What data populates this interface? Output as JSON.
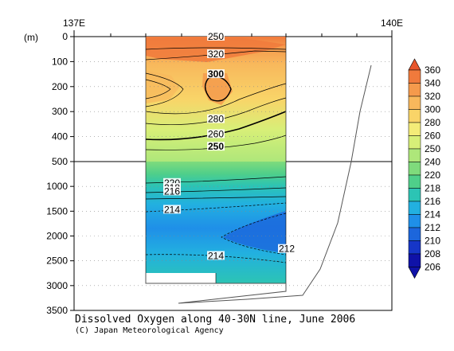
{
  "chart_data": {
    "type": "heatmap",
    "title": "Dissolved Oxygen along 40-30N line, June 2006",
    "credit": "(C) Japan Meteorological Agency",
    "y_unit_label": "(m)",
    "x_ticks_top": [
      "137E",
      "140E"
    ],
    "y_ticks_upper": [
      "0",
      "100",
      "200",
      "300",
      "400",
      "500"
    ],
    "y_ticks_lower": [
      "1000",
      "1500",
      "2000",
      "2500",
      "3000",
      "3500"
    ],
    "y_range_upper": [
      0,
      500
    ],
    "y_range_lower": [
      500,
      3500
    ],
    "colorbar": {
      "levels": [
        360,
        340,
        320,
        300,
        280,
        260,
        250,
        240,
        220,
        218,
        216,
        214,
        212,
        210,
        208,
        206
      ],
      "colors": [
        "#e8562c",
        "#f07a3c",
        "#f59a4c",
        "#f8b85c",
        "#f9d468",
        "#f4ec78",
        "#d7ef78",
        "#aee77a",
        "#7fdb7c",
        "#4fcf8a",
        "#2cc4b4",
        "#22b0e0",
        "#1f8fe8",
        "#1c66dc",
        "#1636c8",
        "#0f12a8"
      ]
    },
    "contour_labels": [
      {
        "text": "250",
        "depth": 0
      },
      {
        "text": "320",
        "depth": 70
      },
      {
        "text": "300",
        "depth": 150
      },
      {
        "text": "280",
        "depth": 330
      },
      {
        "text": "260",
        "depth": 390
      },
      {
        "text": "250",
        "depth": 440
      },
      {
        "text": "220",
        "depth": 930
      },
      {
        "text": "218",
        "depth": 1030
      },
      {
        "text": "216",
        "depth": 1100
      },
      {
        "text": "214",
        "depth": 1470
      },
      {
        "text": "212",
        "depth": 2260
      },
      {
        "text": "214",
        "depth": 2400
      }
    ]
  }
}
